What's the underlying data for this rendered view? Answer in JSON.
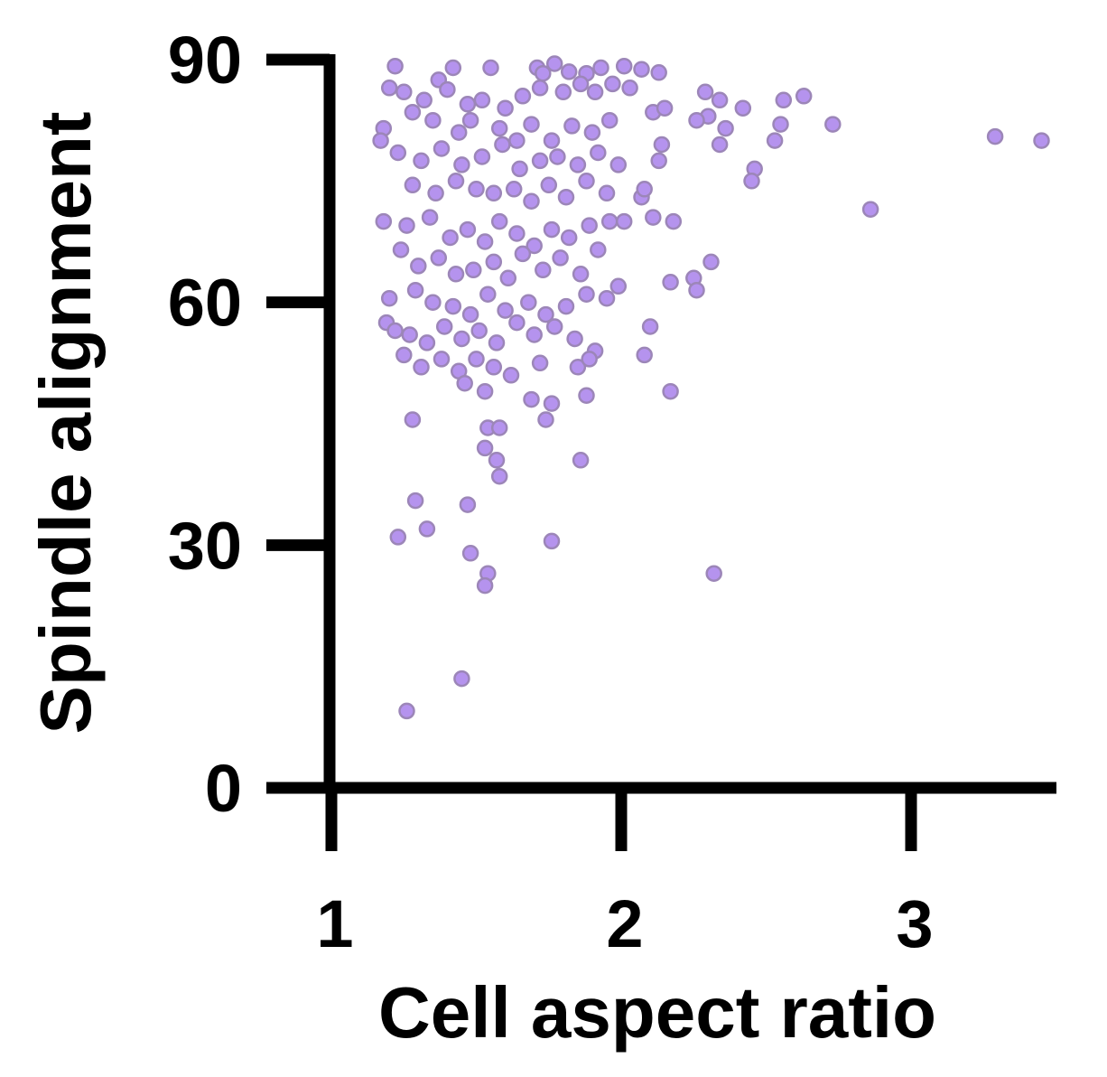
{
  "chart_data": {
    "type": "scatter",
    "xlabel": "Cell aspect ratio",
    "ylabel": "Spindle alignment",
    "xlim": [
      0.98,
      3.55
    ],
    "ylim": [
      0,
      90
    ],
    "xticks": [
      1,
      2,
      3
    ],
    "yticks": [
      0,
      30,
      60,
      90
    ],
    "grid": false,
    "legend": "none",
    "marker_fill": "#b593ee",
    "marker_stroke": "#9c86b8",
    "axis_color": "#000000",
    "series": [
      {
        "points": [
          [
            1.22,
            89.2
          ],
          [
            1.37,
            87.5
          ],
          [
            1.42,
            89.0
          ],
          [
            1.55,
            89.0
          ],
          [
            1.71,
            89.0
          ],
          [
            1.73,
            88.3
          ],
          [
            1.77,
            89.5
          ],
          [
            1.82,
            88.5
          ],
          [
            1.88,
            88.3
          ],
          [
            1.93,
            89.0
          ],
          [
            2.01,
            89.2
          ],
          [
            2.07,
            88.8
          ],
          [
            2.13,
            88.4
          ],
          [
            1.2,
            86.5
          ],
          [
            1.25,
            86.0
          ],
          [
            1.32,
            85.0
          ],
          [
            1.4,
            86.3
          ],
          [
            1.47,
            84.5
          ],
          [
            1.52,
            85.0
          ],
          [
            1.6,
            84.0
          ],
          [
            1.66,
            85.5
          ],
          [
            1.72,
            86.5
          ],
          [
            1.8,
            86.0
          ],
          [
            1.86,
            87.0
          ],
          [
            1.91,
            86.0
          ],
          [
            1.97,
            87.0
          ],
          [
            2.03,
            86.5
          ],
          [
            1.18,
            81.5
          ],
          [
            1.17,
            80.0
          ],
          [
            1.28,
            83.5
          ],
          [
            1.35,
            82.5
          ],
          [
            1.44,
            81.0
          ],
          [
            1.48,
            82.5
          ],
          [
            1.58,
            81.5
          ],
          [
            1.64,
            80.0
          ],
          [
            1.69,
            82.0
          ],
          [
            1.76,
            80.0
          ],
          [
            1.83,
            81.8
          ],
          [
            1.9,
            81.0
          ],
          [
            1.96,
            82.5
          ],
          [
            2.11,
            83.5
          ],
          [
            2.15,
            84.0
          ],
          [
            1.23,
            78.5
          ],
          [
            1.31,
            77.5
          ],
          [
            1.38,
            79.0
          ],
          [
            1.45,
            77.0
          ],
          [
            1.52,
            78.0
          ],
          [
            1.59,
            79.5
          ],
          [
            1.65,
            76.5
          ],
          [
            1.72,
            77.5
          ],
          [
            1.78,
            78.0
          ],
          [
            1.85,
            77.0
          ],
          [
            1.92,
            78.5
          ],
          [
            1.99,
            77.0
          ],
          [
            2.13,
            77.5
          ],
          [
            2.14,
            79.5
          ],
          [
            1.28,
            74.5
          ],
          [
            1.36,
            73.5
          ],
          [
            1.43,
            75.0
          ],
          [
            1.5,
            74.0
          ],
          [
            1.56,
            73.5
          ],
          [
            1.63,
            74.0
          ],
          [
            1.69,
            72.5
          ],
          [
            1.75,
            74.5
          ],
          [
            1.81,
            73.0
          ],
          [
            1.88,
            75.0
          ],
          [
            1.95,
            73.5
          ],
          [
            2.07,
            73.0
          ],
          [
            2.08,
            74.0
          ],
          [
            2.11,
            70.5
          ],
          [
            1.18,
            70.0
          ],
          [
            1.26,
            69.5
          ],
          [
            1.34,
            70.5
          ],
          [
            1.41,
            68.0
          ],
          [
            1.47,
            69.0
          ],
          [
            1.53,
            67.5
          ],
          [
            1.58,
            70.0
          ],
          [
            1.64,
            68.5
          ],
          [
            1.7,
            67.0
          ],
          [
            1.76,
            69.0
          ],
          [
            1.82,
            68.0
          ],
          [
            1.89,
            69.5
          ],
          [
            1.96,
            70.0
          ],
          [
            2.01,
            70.0
          ],
          [
            2.18,
            70.0
          ],
          [
            1.24,
            66.5
          ],
          [
            1.3,
            64.5
          ],
          [
            1.37,
            65.5
          ],
          [
            1.43,
            63.5
          ],
          [
            1.49,
            64.0
          ],
          [
            1.56,
            65.0
          ],
          [
            1.61,
            63.0
          ],
          [
            1.66,
            66.0
          ],
          [
            1.73,
            64.0
          ],
          [
            1.79,
            65.5
          ],
          [
            1.86,
            63.5
          ],
          [
            1.92,
            66.5
          ],
          [
            1.99,
            62.0
          ],
          [
            2.17,
            62.5
          ],
          [
            2.25,
            63.0
          ],
          [
            2.31,
            65.0
          ],
          [
            1.2,
            60.5
          ],
          [
            1.29,
            61.5
          ],
          [
            1.35,
            60.0
          ],
          [
            1.42,
            59.5
          ],
          [
            1.48,
            58.5
          ],
          [
            1.54,
            61.0
          ],
          [
            1.6,
            59.0
          ],
          [
            1.68,
            60.0
          ],
          [
            1.74,
            58.5
          ],
          [
            1.81,
            59.5
          ],
          [
            1.88,
            61.0
          ],
          [
            1.95,
            60.5
          ],
          [
            2.26,
            61.5
          ],
          [
            1.19,
            57.5
          ],
          [
            1.22,
            56.5
          ],
          [
            1.27,
            56.0
          ],
          [
            1.33,
            55.0
          ],
          [
            1.39,
            57.0
          ],
          [
            1.45,
            55.5
          ],
          [
            1.51,
            56.5
          ],
          [
            1.57,
            55.0
          ],
          [
            1.64,
            57.5
          ],
          [
            1.7,
            56.0
          ],
          [
            1.77,
            57.0
          ],
          [
            1.84,
            55.5
          ],
          [
            1.91,
            54.0
          ],
          [
            2.1,
            57.0
          ],
          [
            1.25,
            53.5
          ],
          [
            1.31,
            52.0
          ],
          [
            1.38,
            53.0
          ],
          [
            1.44,
            51.5
          ],
          [
            1.5,
            53.0
          ],
          [
            1.56,
            52.0
          ],
          [
            1.62,
            51.0
          ],
          [
            1.72,
            52.5
          ],
          [
            1.85,
            52.0
          ],
          [
            1.89,
            53.0
          ],
          [
            2.08,
            53.5
          ],
          [
            1.46,
            50.0
          ],
          [
            1.53,
            49.0
          ],
          [
            1.69,
            48.0
          ],
          [
            1.76,
            47.5
          ],
          [
            1.88,
            48.5
          ],
          [
            2.17,
            49.0
          ],
          [
            1.28,
            45.5
          ],
          [
            1.54,
            44.5
          ],
          [
            1.58,
            44.5
          ],
          [
            1.74,
            45.5
          ],
          [
            1.53,
            42.0
          ],
          [
            1.57,
            40.5
          ],
          [
            1.58,
            38.5
          ],
          [
            1.86,
            40.5
          ],
          [
            1.29,
            35.5
          ],
          [
            1.47,
            35.0
          ],
          [
            1.33,
            32.0
          ],
          [
            1.23,
            31.0
          ],
          [
            1.76,
            30.5
          ],
          [
            1.48,
            29.0
          ],
          [
            1.54,
            26.5
          ],
          [
            1.53,
            25.0
          ],
          [
            2.32,
            26.5
          ],
          [
            1.45,
            13.5
          ],
          [
            1.26,
            9.5
          ],
          [
            2.29,
            86.0
          ],
          [
            2.34,
            85.0
          ],
          [
            2.42,
            84.0
          ],
          [
            2.56,
            85.0
          ],
          [
            2.63,
            85.5
          ],
          [
            2.3,
            83.0
          ],
          [
            2.36,
            81.5
          ],
          [
            2.26,
            82.5
          ],
          [
            2.55,
            82.0
          ],
          [
            2.73,
            82.0
          ],
          [
            2.34,
            79.5
          ],
          [
            2.53,
            80.0
          ],
          [
            2.46,
            76.5
          ],
          [
            2.45,
            75.0
          ],
          [
            2.86,
            71.5
          ],
          [
            3.29,
            80.5
          ],
          [
            3.45,
            80.0
          ]
        ]
      }
    ]
  }
}
